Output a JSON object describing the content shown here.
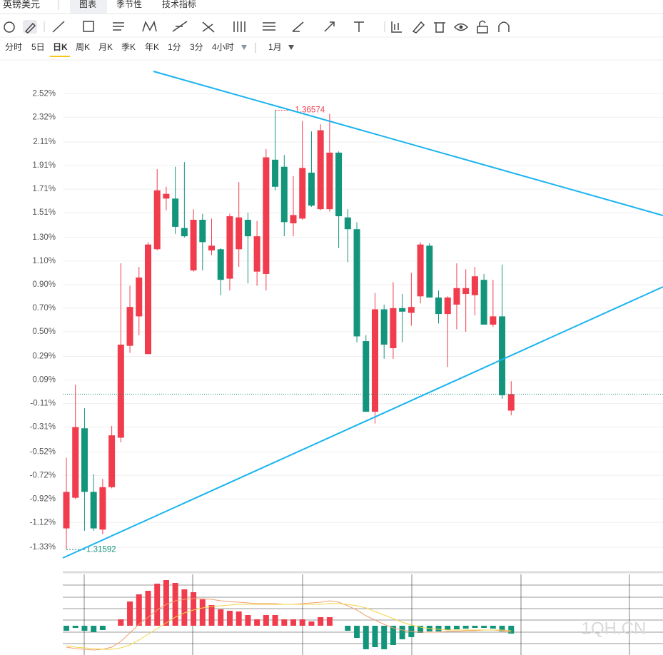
{
  "header": {
    "symbol": "英镑美元",
    "tabs": [
      "图表",
      "季节性",
      "技术指标"
    ]
  },
  "periods": [
    "分时",
    "5日",
    "日K",
    "周K",
    "月K",
    "季K",
    "年K",
    "1分",
    "3分",
    "4小时",
    "1月"
  ],
  "watermark": "1QH.CN",
  "chart_data": [
    {
      "type": "candlestick",
      "up_color": "#f03c4c",
      "down_color": "#13957c",
      "grid": true,
      "ylim": [
        -1.53,
        2.71
      ],
      "yticks": [
        {
          "value": 2.52,
          "label": "2.52%"
        },
        {
          "value": 2.32,
          "label": "2.32%"
        },
        {
          "value": 2.11,
          "label": "2.11%"
        },
        {
          "value": 1.91,
          "label": "1.91%"
        },
        {
          "value": 1.71,
          "label": "1.71%"
        },
        {
          "value": 1.51,
          "label": "1.51%"
        },
        {
          "value": 1.3,
          "label": "1.30%"
        },
        {
          "value": 1.1,
          "label": "1.10%"
        },
        {
          "value": 0.9,
          "label": "0.90%"
        },
        {
          "value": 0.7,
          "label": "0.70%"
        },
        {
          "value": 0.5,
          "label": "0.50%"
        },
        {
          "value": 0.29,
          "label": "0.29%"
        },
        {
          "value": 0.09,
          "label": "0.09%"
        },
        {
          "value": -0.11,
          "label": "-0.11%"
        },
        {
          "value": -0.31,
          "label": "-0.31%"
        },
        {
          "value": -0.52,
          "label": "-0.52%"
        },
        {
          "value": -0.72,
          "label": "-0.72%"
        },
        {
          "value": -0.92,
          "label": "-0.92%"
        },
        {
          "value": -1.12,
          "label": "-1.12%"
        },
        {
          "value": -1.33,
          "label": "-1.33%"
        }
      ],
      "open": [
        -1.17,
        -0.91,
        -0.32,
        -0.86,
        -1.18,
        -0.82,
        -0.4,
        0.38,
        0.63,
        0.31,
        1.2,
        1.63,
        1.63,
        1.38,
        1.02,
        1.45,
        1.19,
        1.2,
        0.95,
        1.2,
        1.45,
        1.01,
        0.99,
        1.96,
        1.9,
        1.42,
        1.46,
        1.85,
        1.54,
        1.54,
        2.02,
        1.47,
        1.37,
        0.42,
        -0.18,
        0.69,
        0.36,
        0.7,
        0.66,
        0.8,
        1.23,
        0.79,
        0.65,
        0.73,
        0.82,
        0.81,
        0.94,
        0.56,
        0.63,
        -0.17
      ],
      "high": [
        -0.57,
        0.05,
        -0.15,
        -0.71,
        -0.75,
        -0.3,
        1.08,
        0.89,
        1.05,
        1.26,
        1.88,
        1.73,
        1.9,
        1.94,
        1.54,
        1.5,
        1.46,
        1.21,
        1.5,
        1.77,
        1.51,
        1.44,
        2.05,
        2.38,
        2.0,
        1.82,
        2.29,
        2.2,
        2.26,
        2.35,
        2.03,
        1.54,
        1.43,
        0.47,
        0.83,
        0.73,
        0.92,
        0.82,
        1.0,
        1.26,
        1.25,
        0.85,
        0.8,
        1.08,
        1.03,
        1.05,
        0.99,
        0.94,
        1.07,
        0.08
      ],
      "low": [
        -1.35,
        -0.92,
        -1.19,
        -1.19,
        -1.22,
        -0.83,
        -0.44,
        0.32,
        0.47,
        0.31,
        1.19,
        1.53,
        1.33,
        1.3,
        1.01,
        1.02,
        1.15,
        0.81,
        0.85,
        1.05,
        0.91,
        0.89,
        0.85,
        1.7,
        1.31,
        1.31,
        1.45,
        1.56,
        1.53,
        1.52,
        1.21,
        1.09,
        0.41,
        -0.18,
        -0.28,
        0.27,
        0.27,
        0.41,
        0.55,
        0.74,
        0.79,
        0.57,
        0.2,
        0.52,
        0.5,
        0.64,
        0.56,
        0.54,
        -0.07,
        -0.21
      ],
      "close": [
        -0.86,
        -0.31,
        -0.86,
        -1.17,
        -0.82,
        -0.38,
        0.39,
        0.71,
        0.96,
        1.24,
        1.7,
        1.67,
        1.39,
        1.31,
        1.45,
        1.26,
        1.23,
        0.94,
        1.48,
        1.47,
        1.31,
        1.31,
        1.98,
        1.73,
        1.43,
        1.49,
        1.89,
        1.57,
        2.21,
        2.02,
        1.48,
        1.37,
        0.46,
        -0.18,
        0.69,
        0.39,
        0.7,
        0.67,
        0.71,
        1.24,
        0.79,
        0.65,
        0.79,
        0.87,
        0.87,
        0.97,
        0.56,
        0.63,
        -0.04,
        -0.03
      ],
      "high_label": "1.36574",
      "low_label": "1.31592"
    },
    {
      "type": "macd",
      "up_color": "#f03c4c",
      "down_color": "#13957c",
      "ylim": [
        -41,
        72
      ],
      "values": [
        -7,
        -3,
        -7,
        -9,
        -6,
        0,
        9,
        34,
        44,
        49,
        59,
        64,
        60,
        51,
        47,
        37,
        29,
        23,
        21,
        20,
        15,
        9,
        15,
        15,
        9,
        9,
        9,
        6,
        12,
        12,
        0,
        -7,
        -17,
        -33,
        -30,
        -33,
        -27,
        -19,
        -16,
        -10,
        -8,
        -8,
        -6,
        -5,
        -4,
        -3,
        -3,
        -4,
        -8,
        -11
      ],
      "lines": [
        {
          "color": "#f0a070",
          "values": [
            -30,
            -32,
            -33,
            -34,
            -33,
            -30,
            -22,
            -10,
            2,
            12,
            22,
            30,
            35,
            37,
            38,
            38,
            37,
            35,
            34,
            33,
            32,
            31,
            31,
            31,
            30,
            30,
            31,
            32,
            33,
            35,
            33,
            28,
            22,
            14,
            8,
            2,
            -3,
            -6,
            -8,
            -9,
            -9,
            -9,
            -8,
            -8,
            -7,
            -7,
            -6,
            -6,
            -7,
            -9
          ]
        },
        {
          "color": "#f2d54a",
          "values": [
            -28,
            -30,
            -31,
            -32,
            -33,
            -33,
            -31,
            -27,
            -20,
            -12,
            -4,
            4,
            12,
            18,
            22,
            25,
            27,
            28,
            29,
            30,
            30,
            30,
            30,
            30,
            30,
            30,
            30,
            30,
            30,
            31,
            31,
            30,
            28,
            25,
            20,
            15,
            10,
            5,
            1,
            -2,
            -4,
            -5,
            -6,
            -6,
            -6,
            -6,
            -6,
            -6,
            -6,
            -7
          ]
        }
      ]
    }
  ]
}
